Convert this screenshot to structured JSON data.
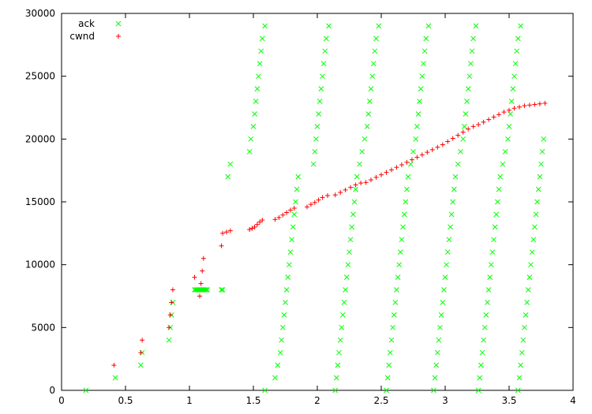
{
  "chart_data": {
    "type": "scatter",
    "title": "",
    "xlabel": "",
    "ylabel": "",
    "xlim": [
      0,
      4
    ],
    "ylim": [
      0,
      30000
    ],
    "x_ticks": [
      "0",
      "0.5",
      "1",
      "1.5",
      "2",
      "2.5",
      "3",
      "3.5",
      "4"
    ],
    "y_ticks": [
      "0",
      "5000",
      "10000",
      "15000",
      "20000",
      "25000",
      "30000"
    ],
    "grid": false,
    "legend_position": "top-left",
    "series": [
      {
        "name": "ack",
        "marker": "x",
        "color": "#00ff00",
        "points": [
          [
            0.19,
            0
          ],
          [
            0.42,
            1000
          ],
          [
            0.62,
            2000
          ],
          [
            0.63,
            3000
          ],
          [
            0.84,
            4000
          ],
          [
            0.85,
            5000
          ],
          [
            0.86,
            6000
          ],
          [
            0.87,
            7000
          ],
          [
            1.04,
            8000
          ],
          [
            1.05,
            8000
          ],
          [
            1.06,
            8000
          ],
          [
            1.07,
            8000
          ],
          [
            1.08,
            8000
          ],
          [
            1.09,
            8000
          ],
          [
            1.1,
            8000
          ],
          [
            1.11,
            8000
          ],
          [
            1.12,
            8000
          ],
          [
            1.13,
            8000
          ],
          [
            1.14,
            8000
          ],
          [
            1.25,
            8000
          ],
          [
            1.26,
            8000
          ],
          [
            1.3,
            17000
          ],
          [
            1.32,
            18000
          ],
          [
            1.47,
            19000
          ],
          [
            1.48,
            20000
          ],
          [
            1.5,
            21000
          ],
          [
            1.51,
            22000
          ],
          [
            1.52,
            23000
          ],
          [
            1.53,
            24000
          ],
          [
            1.54,
            25000
          ],
          [
            1.55,
            26000
          ],
          [
            1.56,
            27000
          ],
          [
            1.57,
            28000
          ],
          [
            1.59,
            29000
          ],
          [
            1.59,
            0
          ],
          [
            1.67,
            1000
          ],
          [
            1.69,
            2000
          ],
          [
            1.71,
            3000
          ],
          [
            1.72,
            4000
          ],
          [
            1.73,
            5000
          ],
          [
            1.74,
            6000
          ],
          [
            1.75,
            7000
          ],
          [
            1.76,
            8000
          ],
          [
            1.77,
            9000
          ],
          [
            1.78,
            10000
          ],
          [
            1.79,
            11000
          ],
          [
            1.8,
            12000
          ],
          [
            1.81,
            13000
          ],
          [
            1.82,
            14000
          ],
          [
            1.83,
            15000
          ],
          [
            1.84,
            16000
          ],
          [
            1.85,
            17000
          ],
          [
            1.97,
            18000
          ],
          [
            1.98,
            19000
          ],
          [
            1.99,
            20000
          ],
          [
            2.0,
            21000
          ],
          [
            2.01,
            22000
          ],
          [
            2.02,
            23000
          ],
          [
            2.03,
            24000
          ],
          [
            2.04,
            25000
          ],
          [
            2.05,
            26000
          ],
          [
            2.06,
            27000
          ],
          [
            2.07,
            28000
          ],
          [
            2.09,
            29000
          ],
          [
            2.14,
            0
          ],
          [
            2.15,
            1000
          ],
          [
            2.16,
            2000
          ],
          [
            2.17,
            3000
          ],
          [
            2.18,
            4000
          ],
          [
            2.19,
            5000
          ],
          [
            2.2,
            6000
          ],
          [
            2.21,
            7000
          ],
          [
            2.22,
            8000
          ],
          [
            2.23,
            9000
          ],
          [
            2.24,
            10000
          ],
          [
            2.25,
            11000
          ],
          [
            2.26,
            12000
          ],
          [
            2.27,
            13000
          ],
          [
            2.28,
            14000
          ],
          [
            2.29,
            15000
          ],
          [
            2.3,
            16000
          ],
          [
            2.31,
            17000
          ],
          [
            2.33,
            18000
          ],
          [
            2.35,
            19000
          ],
          [
            2.37,
            20000
          ],
          [
            2.39,
            21000
          ],
          [
            2.4,
            22000
          ],
          [
            2.41,
            23000
          ],
          [
            2.42,
            24000
          ],
          [
            2.43,
            25000
          ],
          [
            2.44,
            26000
          ],
          [
            2.45,
            27000
          ],
          [
            2.46,
            28000
          ],
          [
            2.48,
            29000
          ],
          [
            2.54,
            0
          ],
          [
            2.55,
            1000
          ],
          [
            2.56,
            2000
          ],
          [
            2.57,
            3000
          ],
          [
            2.58,
            4000
          ],
          [
            2.59,
            5000
          ],
          [
            2.6,
            6000
          ],
          [
            2.61,
            7000
          ],
          [
            2.62,
            8000
          ],
          [
            2.63,
            9000
          ],
          [
            2.64,
            10000
          ],
          [
            2.65,
            11000
          ],
          [
            2.66,
            12000
          ],
          [
            2.67,
            13000
          ],
          [
            2.68,
            14000
          ],
          [
            2.69,
            15000
          ],
          [
            2.7,
            16000
          ],
          [
            2.71,
            17000
          ],
          [
            2.73,
            18000
          ],
          [
            2.75,
            19000
          ],
          [
            2.77,
            20000
          ],
          [
            2.78,
            21000
          ],
          [
            2.79,
            22000
          ],
          [
            2.8,
            23000
          ],
          [
            2.81,
            24000
          ],
          [
            2.82,
            25000
          ],
          [
            2.83,
            26000
          ],
          [
            2.84,
            27000
          ],
          [
            2.85,
            28000
          ],
          [
            2.87,
            29000
          ],
          [
            2.91,
            0
          ],
          [
            2.92,
            1000
          ],
          [
            2.93,
            2000
          ],
          [
            2.94,
            3000
          ],
          [
            2.95,
            4000
          ],
          [
            2.96,
            5000
          ],
          [
            2.97,
            6000
          ],
          [
            2.98,
            7000
          ],
          [
            2.99,
            8000
          ],
          [
            3.0,
            9000
          ],
          [
            3.01,
            10000
          ],
          [
            3.02,
            11000
          ],
          [
            3.03,
            12000
          ],
          [
            3.04,
            13000
          ],
          [
            3.05,
            14000
          ],
          [
            3.06,
            15000
          ],
          [
            3.07,
            16000
          ],
          [
            3.08,
            17000
          ],
          [
            3.1,
            18000
          ],
          [
            3.12,
            19000
          ],
          [
            3.14,
            20000
          ],
          [
            3.15,
            21000
          ],
          [
            3.16,
            22000
          ],
          [
            3.17,
            23000
          ],
          [
            3.18,
            24000
          ],
          [
            3.19,
            25000
          ],
          [
            3.2,
            26000
          ],
          [
            3.21,
            27000
          ],
          [
            3.22,
            28000
          ],
          [
            3.24,
            29000
          ],
          [
            3.26,
            0
          ],
          [
            3.27,
            1000
          ],
          [
            3.28,
            2000
          ],
          [
            3.29,
            3000
          ],
          [
            3.3,
            4000
          ],
          [
            3.31,
            5000
          ],
          [
            3.32,
            6000
          ],
          [
            3.33,
            7000
          ],
          [
            3.34,
            8000
          ],
          [
            3.35,
            9000
          ],
          [
            3.36,
            10000
          ],
          [
            3.37,
            11000
          ],
          [
            3.38,
            12000
          ],
          [
            3.39,
            13000
          ],
          [
            3.4,
            14000
          ],
          [
            3.41,
            15000
          ],
          [
            3.42,
            16000
          ],
          [
            3.43,
            17000
          ],
          [
            3.45,
            18000
          ],
          [
            3.47,
            19000
          ],
          [
            3.49,
            20000
          ],
          [
            3.5,
            21000
          ],
          [
            3.51,
            22000
          ],
          [
            3.52,
            23000
          ],
          [
            3.53,
            24000
          ],
          [
            3.54,
            25000
          ],
          [
            3.55,
            26000
          ],
          [
            3.56,
            27000
          ],
          [
            3.57,
            28000
          ],
          [
            3.59,
            29000
          ],
          [
            3.57,
            0
          ],
          [
            3.58,
            1000
          ],
          [
            3.59,
            2000
          ],
          [
            3.6,
            3000
          ],
          [
            3.61,
            4000
          ],
          [
            3.62,
            5000
          ],
          [
            3.63,
            6000
          ],
          [
            3.64,
            7000
          ],
          [
            3.65,
            8000
          ],
          [
            3.66,
            9000
          ],
          [
            3.67,
            10000
          ],
          [
            3.68,
            11000
          ],
          [
            3.69,
            12000
          ],
          [
            3.7,
            13000
          ],
          [
            3.71,
            14000
          ],
          [
            3.72,
            15000
          ],
          [
            3.73,
            16000
          ],
          [
            3.74,
            17000
          ],
          [
            3.75,
            18000
          ],
          [
            3.76,
            19000
          ],
          [
            3.77,
            20000
          ]
        ]
      },
      {
        "name": "cwnd",
        "marker": "+",
        "color": "#ff0000",
        "points": [
          [
            0.41,
            2000
          ],
          [
            0.62,
            3000
          ],
          [
            0.63,
            4000
          ],
          [
            0.84,
            5000
          ],
          [
            0.85,
            6000
          ],
          [
            0.86,
            7000
          ],
          [
            0.87,
            8000
          ],
          [
            1.04,
            9000
          ],
          [
            1.08,
            7500
          ],
          [
            1.09,
            8500
          ],
          [
            1.1,
            9500
          ],
          [
            1.11,
            10500
          ],
          [
            1.25,
            11500
          ],
          [
            1.26,
            12500
          ],
          [
            1.29,
            12600
          ],
          [
            1.32,
            12700
          ],
          [
            1.47,
            12800
          ],
          [
            1.49,
            12900
          ],
          [
            1.51,
            13000
          ],
          [
            1.53,
            13200
          ],
          [
            1.55,
            13400
          ],
          [
            1.57,
            13550
          ],
          [
            1.67,
            13600
          ],
          [
            1.7,
            13750
          ],
          [
            1.73,
            13950
          ],
          [
            1.76,
            14150
          ],
          [
            1.79,
            14350
          ],
          [
            1.82,
            14500
          ],
          [
            1.92,
            14600
          ],
          [
            1.95,
            14800
          ],
          [
            1.98,
            14950
          ],
          [
            2.01,
            15150
          ],
          [
            2.04,
            15350
          ],
          [
            2.08,
            15500
          ],
          [
            2.14,
            15550
          ],
          [
            2.18,
            15750
          ],
          [
            2.22,
            15950
          ],
          [
            2.26,
            16150
          ],
          [
            2.3,
            16350
          ],
          [
            2.34,
            16500
          ],
          [
            2.38,
            16550
          ],
          [
            2.42,
            16750
          ],
          [
            2.46,
            16950
          ],
          [
            2.5,
            17150
          ],
          [
            2.54,
            17350
          ],
          [
            2.58,
            17550
          ],
          [
            2.62,
            17750
          ],
          [
            2.66,
            17950
          ],
          [
            2.7,
            18150
          ],
          [
            2.74,
            18350
          ],
          [
            2.78,
            18550
          ],
          [
            2.82,
            18750
          ],
          [
            2.86,
            18950
          ],
          [
            2.9,
            19150
          ],
          [
            2.94,
            19350
          ],
          [
            2.98,
            19550
          ],
          [
            3.02,
            19800
          ],
          [
            3.06,
            20050
          ],
          [
            3.1,
            20300
          ],
          [
            3.14,
            20550
          ],
          [
            3.18,
            20800
          ],
          [
            3.22,
            21000
          ],
          [
            3.26,
            21150
          ],
          [
            3.3,
            21350
          ],
          [
            3.34,
            21550
          ],
          [
            3.38,
            21750
          ],
          [
            3.42,
            21950
          ],
          [
            3.46,
            22150
          ],
          [
            3.5,
            22300
          ],
          [
            3.54,
            22450
          ],
          [
            3.58,
            22550
          ],
          [
            3.62,
            22650
          ],
          [
            3.66,
            22700
          ],
          [
            3.7,
            22750
          ],
          [
            3.74,
            22800
          ],
          [
            3.78,
            22850
          ]
        ]
      }
    ]
  }
}
